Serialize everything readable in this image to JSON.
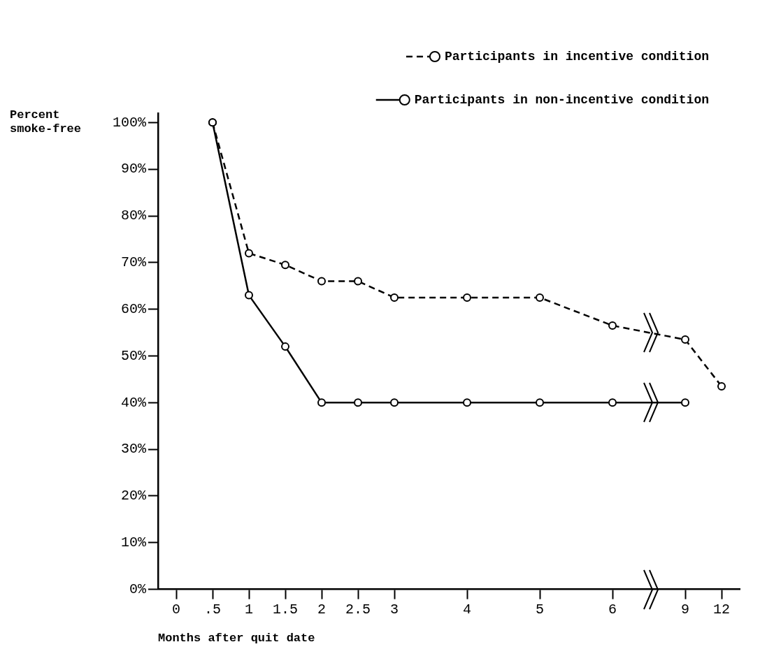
{
  "chart_data": {
    "type": "line",
    "xlabel": "Months after quit date",
    "ylabel": "Percent\nsmoke-free",
    "categories": [
      "0",
      ".5",
      "1",
      "1.5",
      "2",
      "2.5",
      "3",
      null,
      "4",
      null,
      "5",
      null,
      "6",
      null,
      "9",
      "12"
    ],
    "series": [
      {
        "name": "Participants in incentive condition",
        "color": "#000000",
        "line_style": "dashed",
        "values": [
          null,
          100,
          72,
          69.5,
          66,
          66,
          62.5,
          null,
          62.5,
          null,
          62.5,
          null,
          56.5,
          null,
          53.5,
          43.5
        ]
      },
      {
        "name": "Participants in non-incentive condition",
        "color": "#000000",
        "line_style": "solid",
        "values": [
          null,
          100,
          63,
          52,
          40,
          40,
          40,
          null,
          40,
          null,
          40,
          null,
          40,
          null,
          40,
          null
        ]
      }
    ],
    "ylim": [
      0,
      102
    ],
    "yticks": [
      {
        "value": 0,
        "label": "0%"
      },
      {
        "value": 10,
        "label": "10%"
      },
      {
        "value": 20,
        "label": "20%"
      },
      {
        "value": 30,
        "label": "30%"
      },
      {
        "value": 40,
        "label": "40%"
      },
      {
        "value": 50,
        "label": "50%"
      },
      {
        "value": 60,
        "label": "60%"
      },
      {
        "value": 70,
        "label": "70%"
      },
      {
        "value": 80,
        "label": "80%"
      },
      {
        "value": 90,
        "label": "90%"
      },
      {
        "value": 100,
        "label": "100%"
      }
    ],
    "grid": false,
    "legend": "top right",
    "marker": "circle"
  }
}
